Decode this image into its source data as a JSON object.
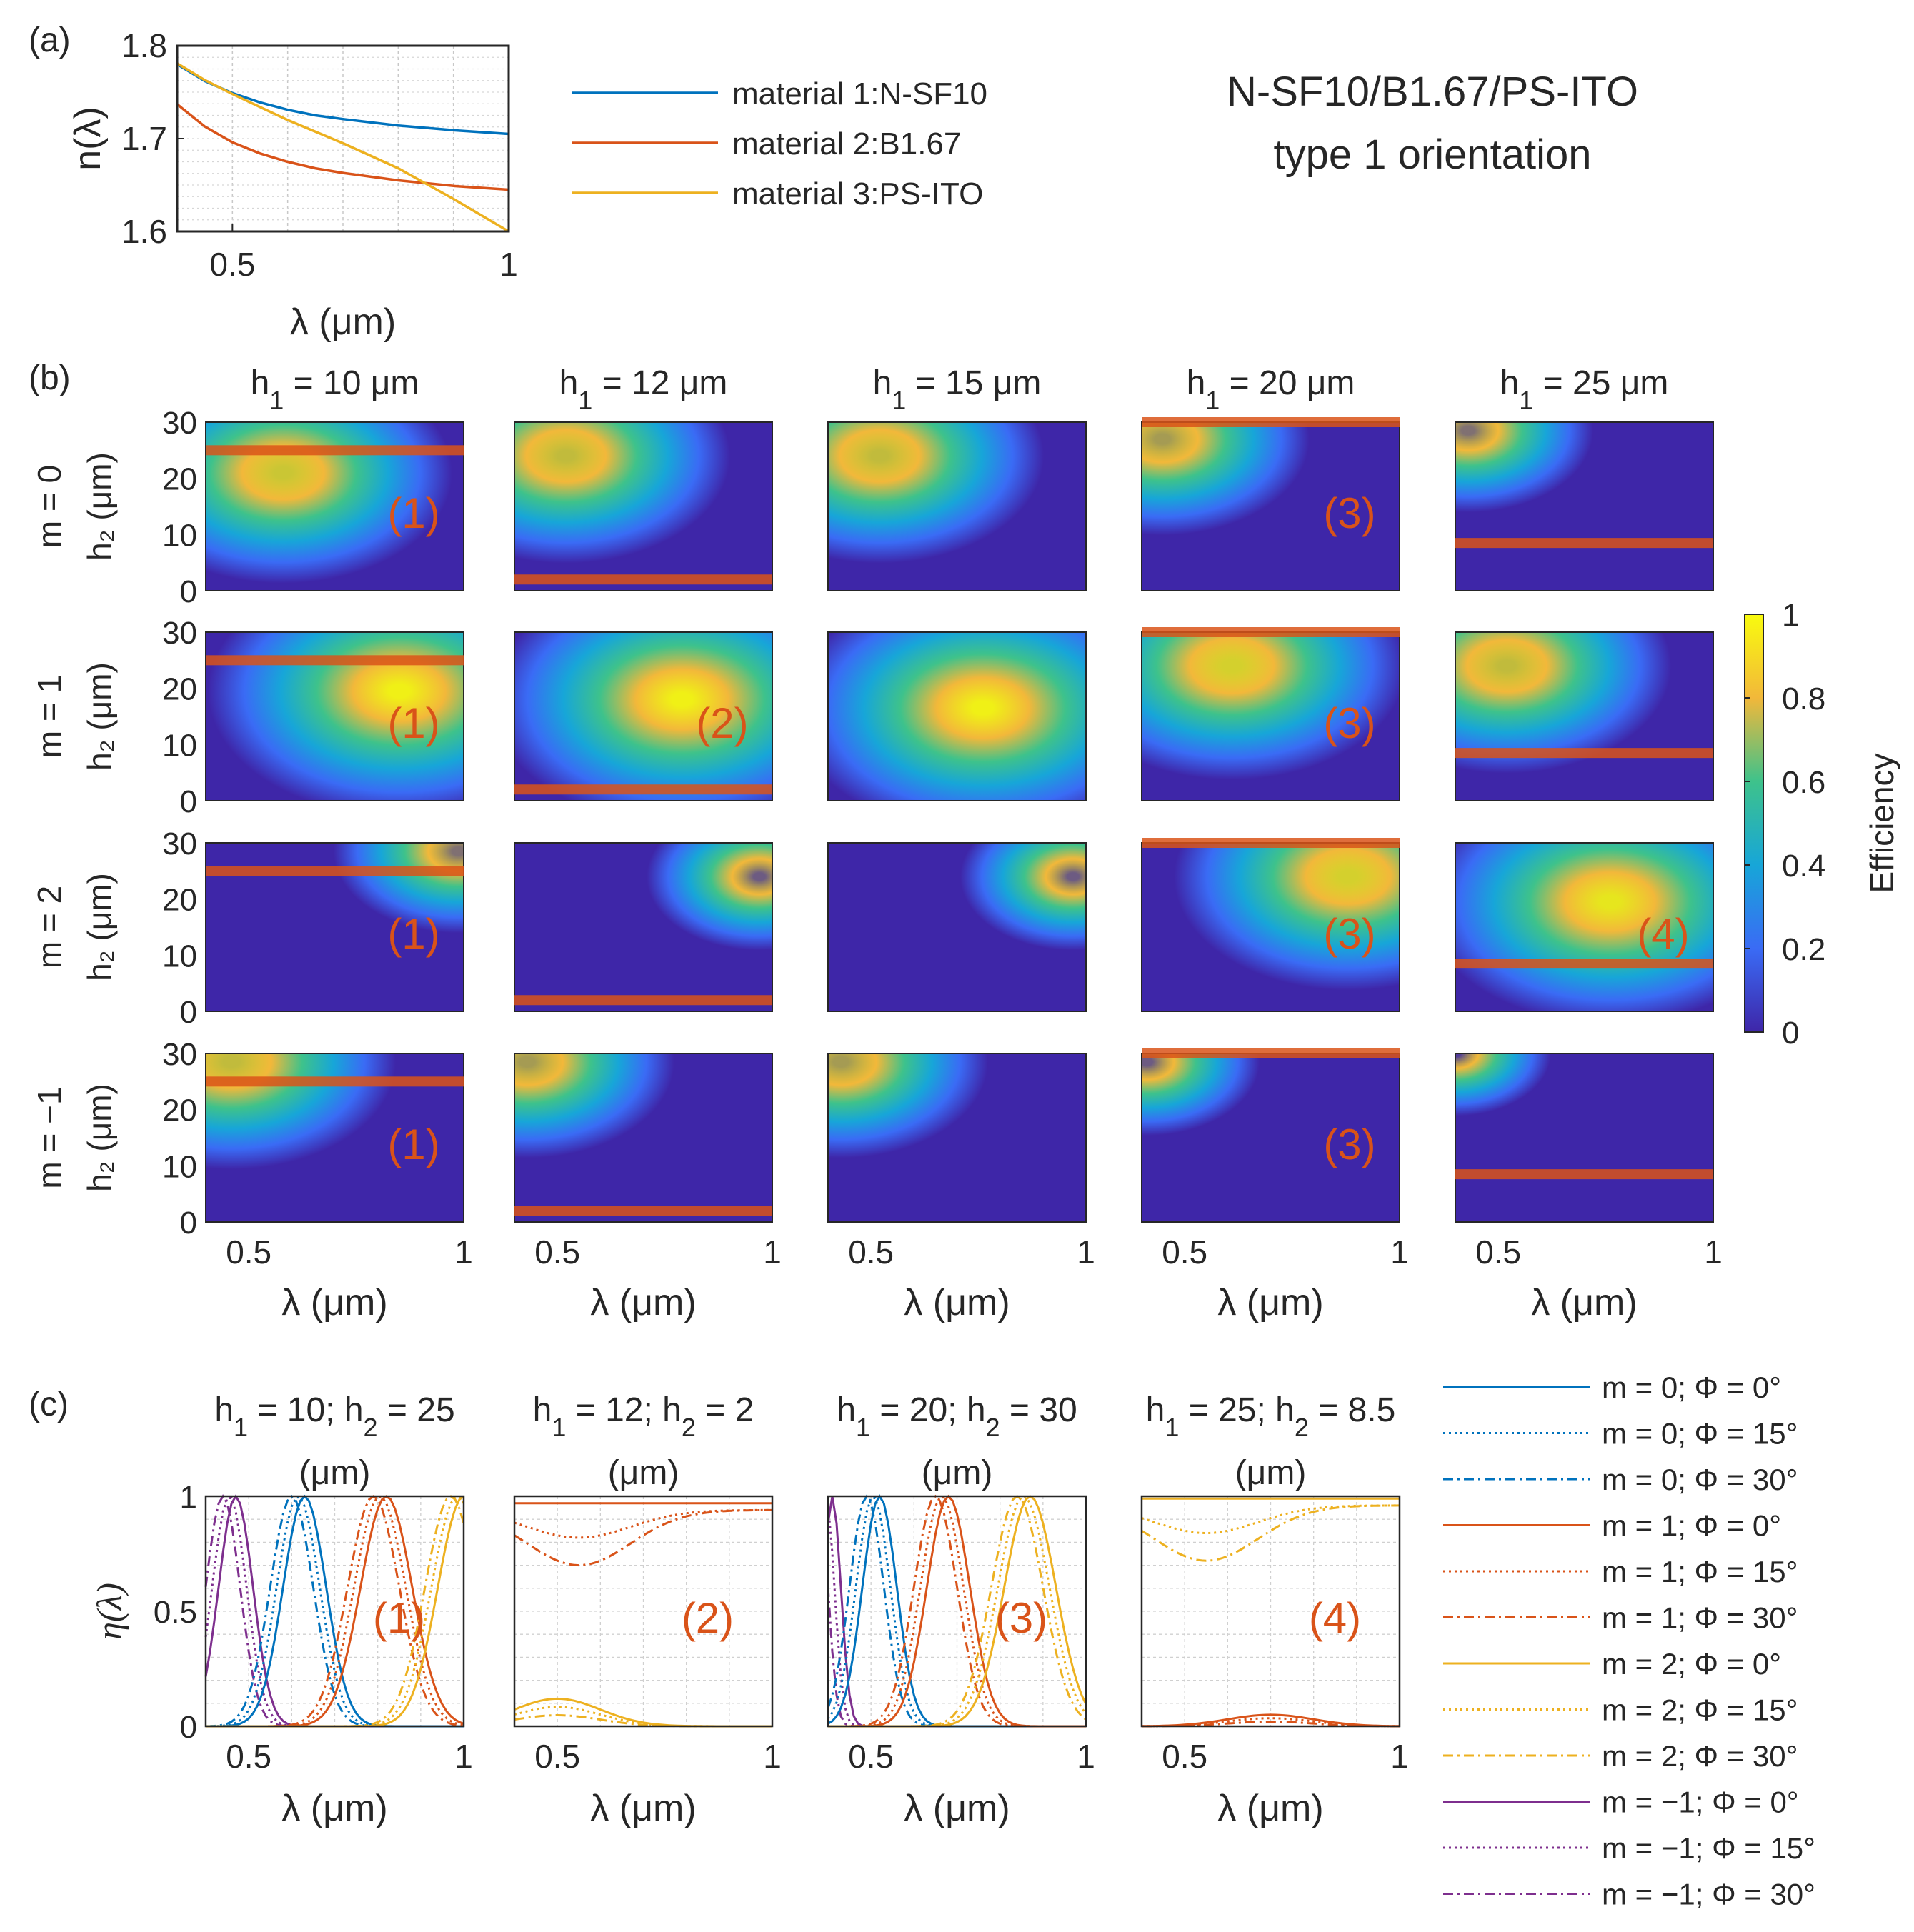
{
  "title": {
    "line1": "N-SF10/B1.67/PS-ITO",
    "line2": "type 1 orientation"
  },
  "panel_labels": [
    "(a)",
    "(b)",
    "(c)"
  ],
  "colors": {
    "blue": "#0072BD",
    "orange": "#D95319",
    "gold": "#EDB120",
    "purple": "#7E2F8E",
    "annotation": "#D95319",
    "heat_low": "#3E26A8",
    "heat_high": "#F9FB0E"
  },
  "chart_data": [
    {
      "id": "a",
      "type": "line",
      "xlabel": "λ (μm)",
      "ylabel": "n(λ)",
      "xlim": [
        0.4,
        1.0
      ],
      "ylim": [
        1.6,
        1.8
      ],
      "xticks": [
        {
          "v": 0.5,
          "label": "0.5"
        },
        {
          "v": 1.0,
          "label": "1"
        }
      ],
      "yticks": [
        {
          "v": 1.6,
          "label": "1.6"
        },
        {
          "v": 1.7,
          "label": "1.7"
        },
        {
          "v": 1.8,
          "label": "1.8"
        }
      ],
      "grid": true,
      "legend_position": "right",
      "series": [
        {
          "name": "material 1:N-SF10",
          "color": "blue",
          "x": [
            0.4,
            0.45,
            0.5,
            0.55,
            0.6,
            0.65,
            0.7,
            0.8,
            0.9,
            1.0
          ],
          "y": [
            1.78,
            1.762,
            1.749,
            1.739,
            1.731,
            1.725,
            1.721,
            1.714,
            1.709,
            1.705
          ]
        },
        {
          "name": "material 2:B1.67",
          "color": "orange",
          "x": [
            0.4,
            0.45,
            0.5,
            0.55,
            0.6,
            0.65,
            0.7,
            0.8,
            0.9,
            1.0
          ],
          "y": [
            1.737,
            1.713,
            1.696,
            1.684,
            1.675,
            1.668,
            1.663,
            1.655,
            1.649,
            1.645
          ]
        },
        {
          "name": "material 3:PS-ITO",
          "color": "gold",
          "x": [
            0.4,
            0.45,
            0.5,
            0.6,
            0.7,
            0.8,
            0.9,
            1.0
          ],
          "y": [
            1.781,
            1.763,
            1.748,
            1.72,
            1.695,
            1.668,
            1.635,
            1.6
          ]
        }
      ]
    },
    {
      "id": "b",
      "type": "heatmap",
      "xlabel": "λ (μm)",
      "ylabel": "h₂ (μm)",
      "xlim": [
        0.4,
        1.0
      ],
      "ylim": [
        0,
        30
      ],
      "xticks": [
        {
          "v": 0.5,
          "label": "0.5"
        },
        {
          "v": 1.0,
          "label": "1"
        }
      ],
      "yticks": [
        {
          "v": 0,
          "label": "0"
        },
        {
          "v": 10,
          "label": "10"
        },
        {
          "v": 20,
          "label": "20"
        },
        {
          "v": 30,
          "label": "30"
        }
      ],
      "columns": [
        {
          "h1_label": "h",
          "h1_sub": "1",
          "h1_text": " = 10 μm",
          "h1": 10
        },
        {
          "h1_label": "h",
          "h1_sub": "1",
          "h1_text": " = 12 μm",
          "h1": 12
        },
        {
          "h1_label": "h",
          "h1_sub": "1",
          "h1_text": " = 15 μm",
          "h1": 15
        },
        {
          "h1_label": "h",
          "h1_sub": "1",
          "h1_text": " = 20 μm",
          "h1": 20
        },
        {
          "h1_label": "h",
          "h1_sub": "1",
          "h1_text": " = 25 μm",
          "h1": 25
        }
      ],
      "rows": [
        {
          "label": "m = 0",
          "m": 0
        },
        {
          "label": "m = 1",
          "m": 1
        },
        {
          "label": "m = 2",
          "m": 2
        },
        {
          "label": "m = −1",
          "m": -1
        }
      ],
      "colorbar": {
        "label": "Efficiency",
        "range": [
          0,
          1
        ],
        "ticks": [
          {
            "v": 0,
            "label": "0"
          },
          {
            "v": 0.2,
            "label": "0.2"
          },
          {
            "v": 0.4,
            "label": "0.4"
          },
          {
            "v": 0.6,
            "label": "0.6"
          },
          {
            "v": 0.8,
            "label": "0.8"
          },
          {
            "v": 1,
            "label": "1"
          }
        ]
      },
      "markers": [
        {
          "col": 0,
          "h2": 25,
          "label": "(1)",
          "rows_labeled": [
            0,
            1,
            2,
            3
          ]
        },
        {
          "col": 1,
          "h2": 2,
          "label": "(2)",
          "rows_labeled": [
            1
          ]
        },
        {
          "col": 3,
          "h2": 30,
          "label": "(3)",
          "rows_labeled": [
            0,
            1,
            2,
            3
          ]
        },
        {
          "col": 4,
          "h2": 8.5,
          "label": "(4)",
          "rows_labeled": [
            2
          ]
        }
      ]
    },
    {
      "id": "c",
      "type": "line",
      "xlabel": "λ (μm)",
      "ylabel": "η(λ)",
      "xlim": [
        0.4,
        1.0
      ],
      "ylim": [
        0,
        1
      ],
      "xticks": [
        {
          "v": 0.5,
          "label": "0.5"
        },
        {
          "v": 1.0,
          "label": "1"
        }
      ],
      "yticks": [
        {
          "v": 0,
          "label": "0"
        },
        {
          "v": 0.5,
          "label": "0.5"
        },
        {
          "v": 1,
          "label": "1"
        }
      ],
      "grid": true,
      "panels": [
        {
          "t1": "h",
          "s1": "1",
          "t2": " = 10; h",
          "s2": "2",
          "t3": " = 25",
          "unit": "(μm)",
          "annotation": "(1)",
          "h1": 10,
          "h2": 25
        },
        {
          "t1": "h",
          "s1": "1",
          "t2": " = 12; h",
          "s2": "2",
          "t3": " = 2",
          "unit": "(μm)",
          "annotation": "(2)",
          "h1": 12,
          "h2": 2
        },
        {
          "t1": "h",
          "s1": "1",
          "t2": " = 20; h",
          "s2": "2",
          "t3": " = 30",
          "unit": "(μm)",
          "annotation": "(3)",
          "h1": 20,
          "h2": 30
        },
        {
          "t1": "h",
          "s1": "1",
          "t2": " = 25; h",
          "s2": "2",
          "t3": " = 8.5",
          "unit": "(μm)",
          "annotation": "(4)",
          "h1": 25,
          "h2": 8.5
        }
      ],
      "legend": [
        {
          "label": "m = 0; Φ = 0°",
          "color": "blue",
          "dash": "solid"
        },
        {
          "label": "m = 0; Φ = 15°",
          "color": "blue",
          "dash": "dotted"
        },
        {
          "label": "m = 0; Φ = 30°",
          "color": "blue",
          "dash": "dashdot"
        },
        {
          "label": "m = 1; Φ = 0°",
          "color": "orange",
          "dash": "solid"
        },
        {
          "label": "m = 1; Φ = 15°",
          "color": "orange",
          "dash": "dotted"
        },
        {
          "label": "m = 1; Φ = 30°",
          "color": "orange",
          "dash": "dashdot"
        },
        {
          "label": "m = 2; Φ = 0°",
          "color": "gold",
          "dash": "solid"
        },
        {
          "label": "m = 2; Φ = 15°",
          "color": "gold",
          "dash": "dotted"
        },
        {
          "label": "m = 2; Φ = 30°",
          "color": "gold",
          "dash": "dashdot"
        },
        {
          "label": "m = −1; Φ = 0°",
          "color": "purple",
          "dash": "solid"
        },
        {
          "label": "m = −1; Φ = 15°",
          "color": "purple",
          "dash": "dotted"
        },
        {
          "label": "m = −1; Φ = 30°",
          "color": "purple",
          "dash": "dashdot"
        }
      ]
    }
  ]
}
